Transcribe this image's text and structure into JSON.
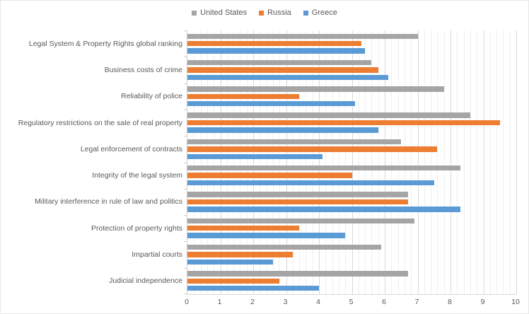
{
  "chart_data": {
    "type": "bar",
    "orientation": "horizontal",
    "title": "",
    "xlabel": "",
    "ylabel": "",
    "xlim": [
      0,
      10
    ],
    "x_ticks": [
      0,
      1,
      2,
      3,
      4,
      5,
      6,
      7,
      8,
      9,
      10
    ],
    "major_unit": 1,
    "minor_unit": 0.2,
    "grid": "on",
    "legend_position": "top",
    "categories": [
      "Legal System & Property Rights global ranking",
      "Business costs of crime",
      "Reliability of police",
      "Regulatory restrictions on the sale of real property",
      "Legal enforcement of contracts",
      "Integrity of the legal system",
      "Military interference in rule of law and politics",
      "Protection of property rights",
      "Impartial courts",
      "Judicial independence"
    ],
    "series": [
      {
        "name": "United States",
        "color": "#A5A5A5",
        "values": [
          7.0,
          5.6,
          7.8,
          8.6,
          6.5,
          8.3,
          6.7,
          6.9,
          5.9,
          6.7
        ]
      },
      {
        "name": "Russia",
        "color": "#ED7D31",
        "values": [
          5.3,
          5.8,
          3.4,
          9.5,
          7.6,
          5.0,
          6.7,
          3.4,
          3.2,
          2.8
        ]
      },
      {
        "name": "Greece",
        "color": "#5B9BD5",
        "values": [
          5.4,
          6.1,
          5.1,
          5.8,
          4.1,
          7.5,
          8.3,
          4.8,
          2.6,
          4.0
        ]
      }
    ]
  },
  "style": {
    "text_color": "#595959",
    "major_grid_color": "#D9D9D9",
    "minor_grid_color": "#EFEFEF",
    "axis_color": "#D0D0D0",
    "background": "#FFFFFF",
    "border_color": "#E7E7E7"
  }
}
